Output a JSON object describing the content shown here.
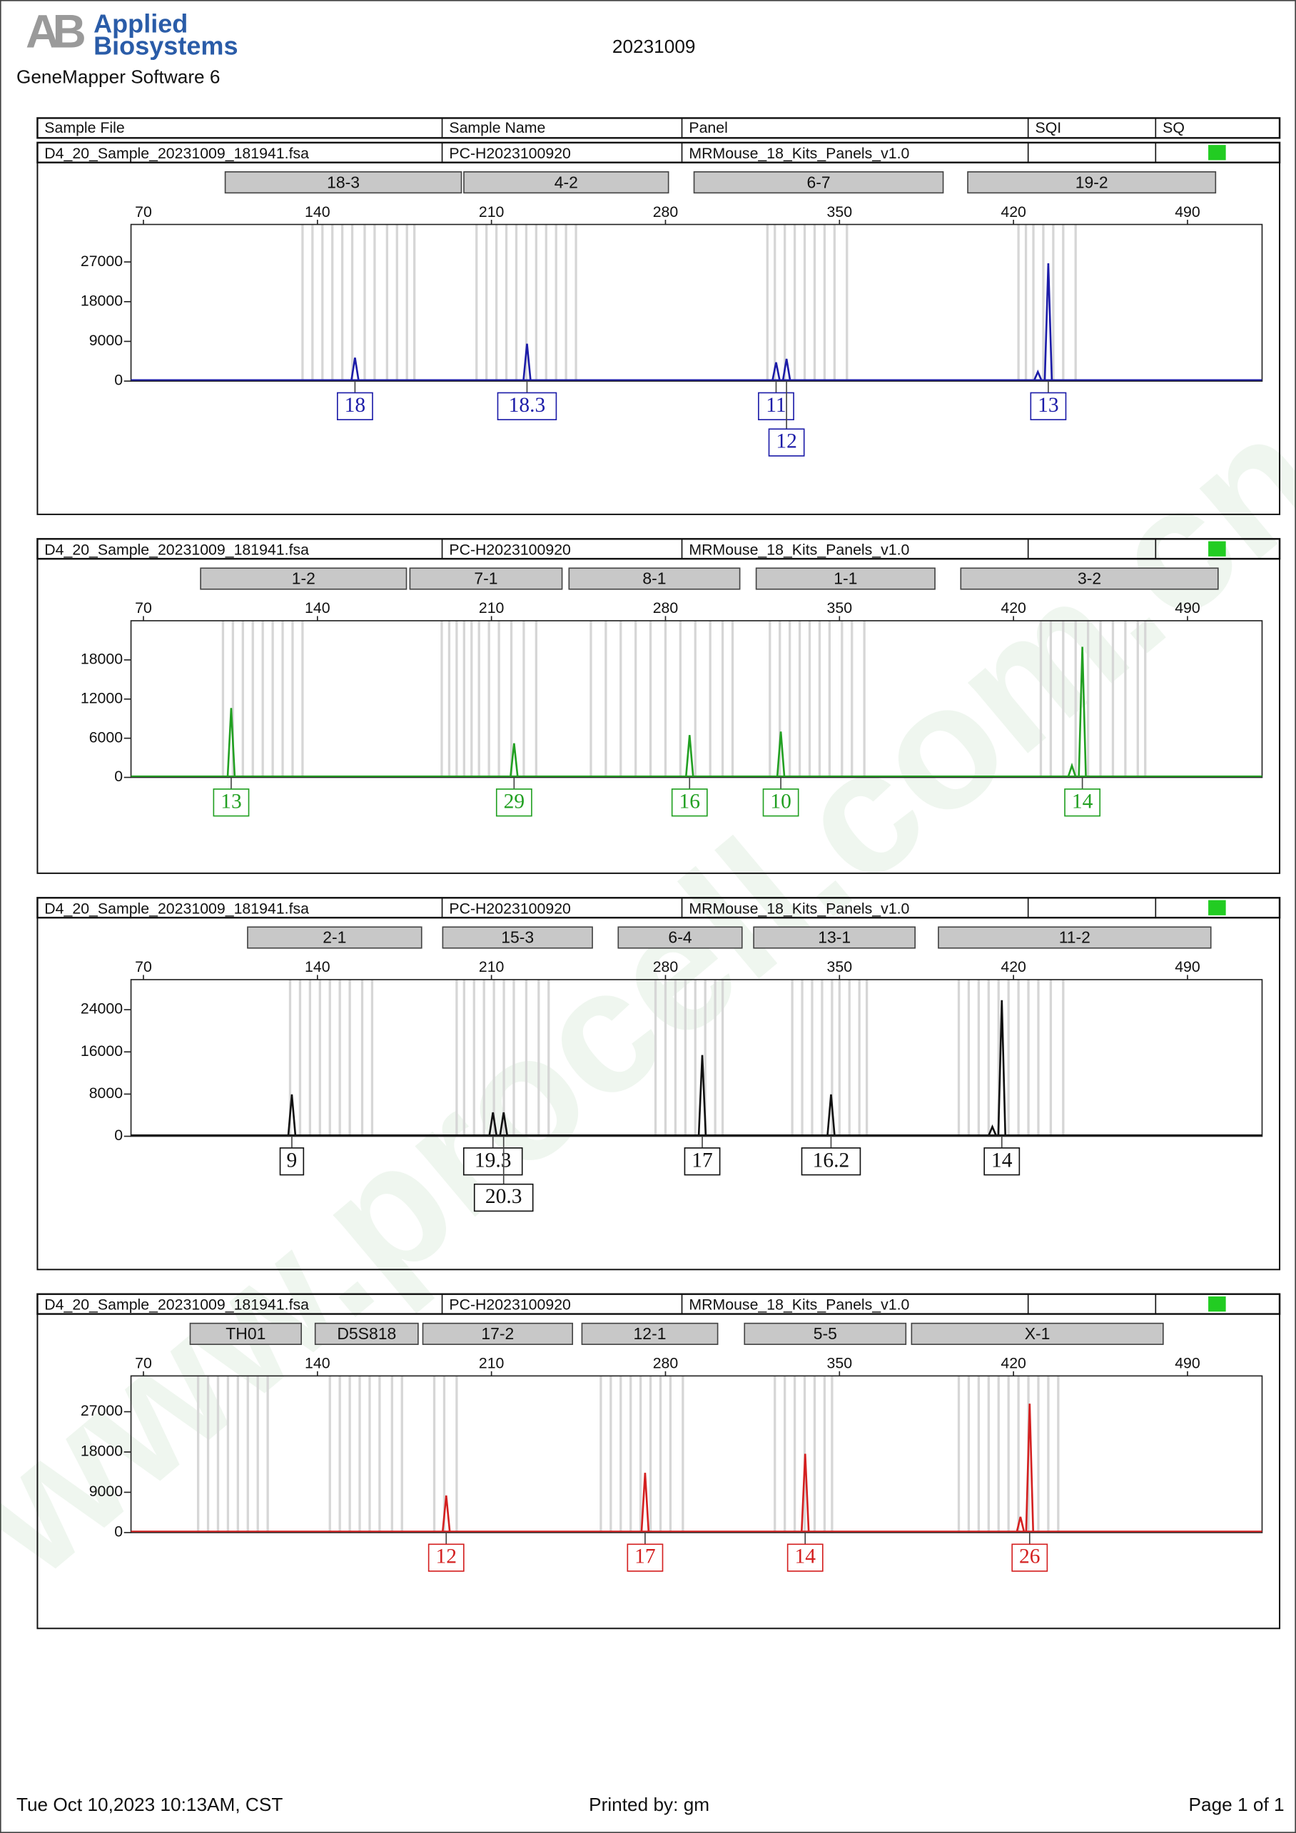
{
  "header": {
    "logo_lines": [
      "Applied",
      "Biosystems"
    ],
    "software": "GeneMapper Software 6",
    "title": "20231009",
    "columns": [
      "Sample File",
      "Sample Name",
      "Panel",
      "SQI",
      "SQ"
    ]
  },
  "watermark": "www.procell.com.cn",
  "footer": {
    "left": "Tue Oct 10,2023 10:13AM, CST",
    "center": "Printed by: gm",
    "right": "Page 1 of 1"
  },
  "chart_data": [
    {
      "type": "peaks",
      "sample_file": "D4_20_Sample_20231009_181941.fsa",
      "sample_name": "PC-H2023100920",
      "panel": "MRMouse_18_Kits_Panels_v1.0",
      "sq_color": "#22cc22",
      "color": "#1c1ca8",
      "markers": [
        {
          "name": "18-3",
          "range": [
            102.9,
            197.9
          ]
        },
        {
          "name": "4-2",
          "range": [
            198.9,
            281.2
          ]
        },
        {
          "name": "6-7",
          "range": [
            291.5,
            391.7
          ]
        },
        {
          "name": "19-2",
          "range": [
            401.6,
            501.3
          ]
        }
      ],
      "bin_lines": [
        134,
        138,
        142,
        146,
        150,
        154,
        159,
        163,
        168,
        172,
        176,
        179,
        204,
        208,
        212,
        216,
        220,
        224,
        228,
        232,
        236,
        240,
        244,
        321,
        324,
        328,
        332,
        336,
        340,
        344,
        348,
        353,
        422,
        425,
        428,
        432,
        436,
        440,
        445
      ],
      "x": [
        155.1,
        224.3,
        324.5,
        328.7,
        429.8,
        434.0
      ],
      "values": [
        5300,
        8470,
        4235,
        5030,
        2100,
        26700
      ],
      "allele_labels": [
        "18",
        "18.3",
        "11",
        "12",
        null,
        "13"
      ],
      "xlim": [
        65,
        520
      ],
      "xticks": [
        70,
        140,
        210,
        280,
        350,
        420,
        490
      ],
      "ylim": [
        0,
        35500
      ],
      "yticks": [
        0,
        9000,
        18000,
        27000
      ]
    },
    {
      "type": "peaks",
      "sample_file": "D4_20_Sample_20231009_181941.fsa",
      "sample_name": "PC-H2023100920",
      "panel": "MRMouse_18_Kits_Panels_v1.0",
      "sq_color": "#22cc22",
      "color": "#22a022",
      "markers": [
        {
          "name": "1-2",
          "range": [
            93.0,
            175.8
          ]
        },
        {
          "name": "7-1",
          "range": [
            177.2,
            238.4
          ]
        },
        {
          "name": "8-1",
          "range": [
            241.2,
            309.9
          ]
        },
        {
          "name": "1-1",
          "range": [
            316.5,
            388.4
          ]
        },
        {
          "name": "3-2",
          "range": [
            398.8,
            502.3
          ]
        }
      ],
      "bin_lines": [
        102,
        106,
        110,
        114,
        118,
        122,
        126,
        130,
        134,
        190,
        193,
        196,
        199,
        202,
        205,
        209,
        213,
        218,
        223,
        228,
        250,
        256,
        262,
        268,
        274,
        280,
        286,
        292,
        298,
        303,
        307,
        322,
        326,
        330,
        334,
        338,
        342,
        346,
        351,
        355,
        360,
        431,
        435,
        440,
        445,
        450,
        455,
        460,
        465,
        470,
        473
      ],
      "x": [
        105.3,
        219.1,
        289.7,
        326.4,
        443.5,
        447.7
      ],
      "values": [
        10630,
        5220,
        6480,
        7020,
        1800,
        20000
      ],
      "allele_labels": [
        "13",
        "29",
        "16",
        "10",
        null,
        "14"
      ],
      "xlim": [
        65,
        520
      ],
      "xticks": [
        70,
        140,
        210,
        280,
        350,
        420,
        490
      ],
      "ylim": [
        0,
        24000
      ],
      "yticks": [
        0,
        6000,
        12000,
        18000
      ]
    },
    {
      "type": "peaks",
      "sample_file": "D4_20_Sample_20231009_181941.fsa",
      "sample_name": "PC-H2023100920",
      "panel": "MRMouse_18_Kits_Panels_v1.0",
      "sq_color": "#22cc22",
      "color": "#111111",
      "markers": [
        {
          "name": "2-1",
          "range": [
            111.9,
            181.9
          ]
        },
        {
          "name": "15-3",
          "range": [
            190.4,
            250.6
          ]
        },
        {
          "name": "6-4",
          "range": [
            261.0,
            310.8
          ]
        },
        {
          "name": "13-1",
          "range": [
            315.5,
            380.4
          ]
        },
        {
          "name": "11-2",
          "range": [
            389.8,
            499.4
          ]
        }
      ],
      "bin_lines": [
        129,
        133,
        137,
        141,
        145,
        149,
        153,
        158,
        162,
        196,
        199,
        203,
        207,
        211,
        215,
        219,
        224,
        229,
        233,
        276,
        280,
        284,
        288,
        292,
        296,
        300,
        303,
        331,
        335,
        339,
        343,
        347,
        350,
        354,
        358,
        361,
        398,
        402,
        406,
        410,
        414,
        418,
        422,
        426,
        430,
        435,
        440
      ],
      "x": [
        129.7,
        210.6,
        214.9,
        294.8,
        346.6,
        411.5,
        415.3
      ],
      "values": [
        7930,
        4530,
        4530,
        15400,
        7930,
        1800,
        25800
      ],
      "allele_labels": [
        "9",
        "19.3",
        "20.3",
        "17",
        "16.2",
        null,
        "14"
      ],
      "xlim": [
        65,
        520
      ],
      "xticks": [
        70,
        140,
        210,
        280,
        350,
        420,
        490
      ],
      "ylim": [
        0,
        29700
      ],
      "yticks": [
        0,
        8000,
        16000,
        24000
      ]
    },
    {
      "type": "peaks",
      "sample_file": "D4_20_Sample_20231009_181941.fsa",
      "sample_name": "PC-H2023100920",
      "panel": "MRMouse_18_Kits_Panels_v1.0",
      "sq_color": "#22cc22",
      "color": "#d42020",
      "markers": [
        {
          "name": "TH01",
          "range": [
            88.8,
            133.5
          ]
        },
        {
          "name": "D5S818",
          "range": [
            139.1,
            180.5
          ]
        },
        {
          "name": "17-2",
          "range": [
            182.4,
            242.6
          ]
        },
        {
          "name": "12-1",
          "range": [
            246.4,
            301.0
          ]
        },
        {
          "name": "5-5",
          "range": [
            311.8,
            376.7
          ]
        },
        {
          "name": "X-1",
          "range": [
            379.0,
            480.2
          ]
        }
      ],
      "bin_lines": [
        92,
        96,
        100,
        104,
        108,
        112,
        116,
        120,
        145,
        149,
        153,
        157,
        161,
        165,
        170,
        174,
        187,
        191,
        196,
        254,
        258,
        262,
        266,
        270,
        274,
        278,
        282,
        287,
        324,
        328,
        332,
        336,
        340,
        344,
        347,
        398,
        402,
        406,
        410,
        414,
        418,
        422,
        426,
        430,
        434,
        438
      ],
      "x": [
        191.8,
        271.8,
        336.2,
        422.8,
        426.5
      ],
      "values": [
        8280,
        13350,
        17600,
        3500,
        28800
      ],
      "allele_labels": [
        "12",
        "17",
        "14",
        null,
        "26"
      ],
      "xlim": [
        65,
        520
      ],
      "xticks": [
        70,
        140,
        210,
        280,
        350,
        420,
        490
      ],
      "ylim": [
        0,
        35000
      ],
      "yticks": [
        0,
        9000,
        18000,
        27000
      ]
    }
  ]
}
